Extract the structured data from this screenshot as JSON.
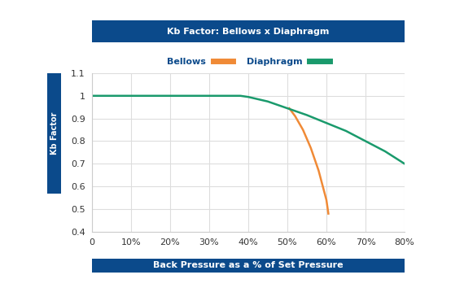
{
  "chart_data": {
    "type": "line",
    "title": "Kb Factor: Bellows x Diaphragm",
    "x_label": "Back Pressure as a % of Set Pressure",
    "y_label": "Kb Factor",
    "series": [
      {
        "name": "Bellows",
        "color": "#f08a36",
        "x": [
          50.5,
          52,
          54,
          56,
          58,
          60,
          60.5
        ],
        "values": [
          0.945,
          0.91,
          0.85,
          0.77,
          0.67,
          0.54,
          0.48
        ]
      },
      {
        "name": "Diaphragm",
        "color": "#1a9a6c",
        "x": [
          0,
          10,
          20,
          30,
          38,
          40,
          45,
          50,
          55,
          60,
          65,
          70,
          75,
          80
        ],
        "values": [
          1,
          1,
          1,
          1,
          1,
          0.995,
          0.975,
          0.945,
          0.915,
          0.88,
          0.845,
          0.8,
          0.755,
          0.7
        ]
      }
    ],
    "xlim": [
      0,
      80
    ],
    "xticks": [
      0,
      {
        "value": 10,
        "label": "10%"
      },
      {
        "value": 20,
        "label": "20%"
      },
      {
        "value": 30,
        "label": "30%"
      },
      {
        "value": 40,
        "label": "40%"
      },
      {
        "value": 50,
        "label": "50%"
      },
      {
        "value": 60,
        "label": "60%"
      },
      {
        "value": 70,
        "label": "70%"
      },
      {
        "value": 80,
        "label": "80%"
      }
    ],
    "ylim": [
      0.4,
      1.1
    ],
    "yticks": [
      0.4,
      0.5,
      0.6,
      0.7,
      0.8,
      0.9,
      1,
      1.1
    ],
    "grid": true,
    "legend": "upper center"
  }
}
